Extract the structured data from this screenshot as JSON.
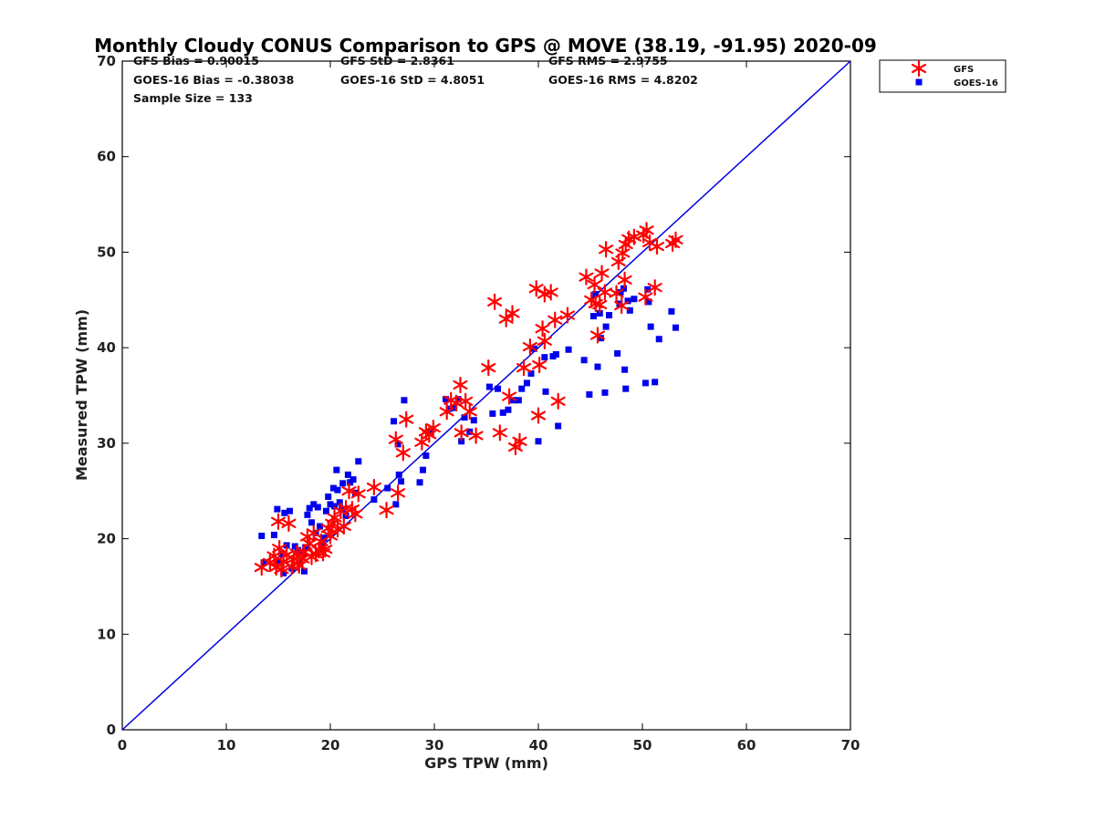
{
  "chart_data": {
    "type": "scatter",
    "title": "Monthly Cloudy CONUS Comparison to GPS @ MOVE (38.19, -91.95) 2020-09",
    "xlabel": "GPS TPW (mm)",
    "ylabel": "Measured TPW (mm)",
    "xlim": [
      0,
      70
    ],
    "ylim": [
      0,
      70
    ],
    "xticks": [
      "0",
      "10",
      "20",
      "30",
      "40",
      "50",
      "60",
      "70"
    ],
    "yticks": [
      "0",
      "10",
      "20",
      "30",
      "40",
      "50",
      "60",
      "70"
    ],
    "grid": false,
    "legend_position": "top-right-outside",
    "reference_line": {
      "name": "1:1",
      "x": [
        0,
        70
      ],
      "y": [
        0,
        70
      ],
      "color": "#0000dd"
    },
    "stats": {
      "gfs_bias": "GFS Bias = 0.90015",
      "gfs_std": "GFS StD = 2.8361",
      "gfs_rms": "GFS RMS = 2.9755",
      "goes_bias": "GOES-16 Bias = -0.38038",
      "goes_std": "GOES-16 StD = 4.8051",
      "goes_rms": "GOES-16 RMS = 4.8202",
      "sample_size": "Sample Size = 133"
    },
    "series": [
      {
        "name": "GFS",
        "marker": "asterisk",
        "color": "#ff0000",
        "points": [
          [
            13.4,
            17.0
          ],
          [
            14.2,
            17.5
          ],
          [
            14.6,
            18.2
          ],
          [
            14.8,
            17.0
          ],
          [
            15.0,
            21.8
          ],
          [
            15.1,
            19.0
          ],
          [
            15.3,
            16.8
          ],
          [
            15.5,
            17.6
          ],
          [
            15.8,
            18.3
          ],
          [
            16.0,
            21.6
          ],
          [
            16.3,
            17.1
          ],
          [
            16.5,
            17.9
          ],
          [
            16.8,
            18.5
          ],
          [
            17.0,
            17.2
          ],
          [
            17.3,
            17.9
          ],
          [
            17.5,
            18.6
          ],
          [
            17.8,
            20.2
          ],
          [
            18.0,
            19.5
          ],
          [
            18.2,
            18.1
          ],
          [
            18.4,
            20.6
          ],
          [
            18.6,
            18.4
          ],
          [
            18.9,
            18.8
          ],
          [
            19.1,
            19.7
          ],
          [
            19.3,
            18.5
          ],
          [
            19.5,
            18.9
          ],
          [
            19.8,
            21.1
          ],
          [
            20.0,
            20.3
          ],
          [
            20.2,
            21.6
          ],
          [
            20.4,
            22.2
          ],
          [
            20.7,
            21.0
          ],
          [
            21.0,
            22.9
          ],
          [
            21.3,
            21.3
          ],
          [
            21.5,
            23.2
          ],
          [
            21.8,
            25.0
          ],
          [
            22.1,
            23.1
          ],
          [
            22.4,
            22.6
          ],
          [
            22.7,
            24.7
          ],
          [
            24.2,
            25.4
          ],
          [
            25.4,
            23.0
          ],
          [
            26.3,
            30.4
          ],
          [
            26.5,
            24.8
          ],
          [
            27.0,
            29.0
          ],
          [
            27.3,
            32.5
          ],
          [
            28.8,
            30.1
          ],
          [
            29.2,
            31.2
          ],
          [
            29.5,
            30.9
          ],
          [
            29.9,
            31.6
          ],
          [
            31.2,
            33.3
          ],
          [
            31.6,
            34.5
          ],
          [
            32.1,
            34.2
          ],
          [
            32.5,
            36.1
          ],
          [
            32.6,
            31.1
          ],
          [
            33.0,
            34.4
          ],
          [
            33.4,
            33.3
          ],
          [
            34.0,
            30.8
          ],
          [
            35.2,
            37.9
          ],
          [
            35.8,
            44.8
          ],
          [
            36.3,
            31.1
          ],
          [
            36.9,
            43.0
          ],
          [
            37.2,
            34.9
          ],
          [
            37.5,
            43.6
          ],
          [
            37.8,
            29.6
          ],
          [
            38.2,
            30.2
          ],
          [
            38.6,
            37.9
          ],
          [
            39.2,
            40.1
          ],
          [
            39.8,
            46.2
          ],
          [
            40.0,
            32.9
          ],
          [
            40.1,
            38.2
          ],
          [
            40.4,
            42.0
          ],
          [
            40.6,
            40.7
          ],
          [
            40.6,
            45.6
          ],
          [
            41.2,
            45.8
          ],
          [
            41.6,
            42.9
          ],
          [
            41.9,
            34.4
          ],
          [
            42.8,
            43.4
          ],
          [
            44.6,
            47.4
          ],
          [
            45.1,
            45.0
          ],
          [
            45.4,
            46.6
          ],
          [
            45.7,
            41.3
          ],
          [
            45.9,
            44.5
          ],
          [
            46.1,
            47.8
          ],
          [
            46.4,
            45.8
          ],
          [
            46.5,
            50.3
          ],
          [
            47.5,
            45.7
          ],
          [
            47.7,
            49.0
          ],
          [
            48.0,
            44.4
          ],
          [
            48.1,
            49.9
          ],
          [
            48.3,
            47.1
          ],
          [
            48.4,
            50.8
          ],
          [
            48.7,
            51.4
          ],
          [
            49.2,
            51.6
          ],
          [
            50.1,
            51.8
          ],
          [
            50.3,
            45.3
          ],
          [
            50.4,
            52.3
          ],
          [
            50.7,
            51.0
          ],
          [
            51.2,
            46.3
          ],
          [
            51.4,
            50.6
          ],
          [
            52.9,
            50.9
          ],
          [
            53.2,
            51.3
          ],
          [
            45.5,
            44.6
          ]
        ]
      },
      {
        "name": "GOES-16",
        "marker": "square",
        "color": "#0000ee",
        "points": [
          [
            13.4,
            20.3
          ],
          [
            13.6,
            17.5
          ],
          [
            14.6,
            20.4
          ],
          [
            14.9,
            23.1
          ],
          [
            15.0,
            17.5
          ],
          [
            15.3,
            18.4
          ],
          [
            15.5,
            16.4
          ],
          [
            15.6,
            22.7
          ],
          [
            15.8,
            19.3
          ],
          [
            16.1,
            22.9
          ],
          [
            16.3,
            16.9
          ],
          [
            16.6,
            19.2
          ],
          [
            16.9,
            18.8
          ],
          [
            17.1,
            17.4
          ],
          [
            17.4,
            18.5
          ],
          [
            17.5,
            16.6
          ],
          [
            17.6,
            19.1
          ],
          [
            17.8,
            22.5
          ],
          [
            18.0,
            23.2
          ],
          [
            18.2,
            21.7
          ],
          [
            18.4,
            23.6
          ],
          [
            18.6,
            20.6
          ],
          [
            18.8,
            23.3
          ],
          [
            19.0,
            21.3
          ],
          [
            19.2,
            19.6
          ],
          [
            19.4,
            20.1
          ],
          [
            19.6,
            22.9
          ],
          [
            19.8,
            24.4
          ],
          [
            20.0,
            23.6
          ],
          [
            20.3,
            25.3
          ],
          [
            20.4,
            23.4
          ],
          [
            20.6,
            27.2
          ],
          [
            20.7,
            25.1
          ],
          [
            20.9,
            23.8
          ],
          [
            21.1,
            23.1
          ],
          [
            21.2,
            25.8
          ],
          [
            21.5,
            22.4
          ],
          [
            21.7,
            26.7
          ],
          [
            21.9,
            25.9
          ],
          [
            22.2,
            26.2
          ],
          [
            22.4,
            24.8
          ],
          [
            22.7,
            28.1
          ],
          [
            24.2,
            24.1
          ],
          [
            25.5,
            25.3
          ],
          [
            26.1,
            32.3
          ],
          [
            26.3,
            23.6
          ],
          [
            26.5,
            29.9
          ],
          [
            26.6,
            26.7
          ],
          [
            26.8,
            26.0
          ],
          [
            27.1,
            34.5
          ],
          [
            28.6,
            25.9
          ],
          [
            28.9,
            27.2
          ],
          [
            29.2,
            28.7
          ],
          [
            29.6,
            31.2
          ],
          [
            31.1,
            34.6
          ],
          [
            31.4,
            33.6
          ],
          [
            31.9,
            33.7
          ],
          [
            32.3,
            34.6
          ],
          [
            32.6,
            30.2
          ],
          [
            32.9,
            32.7
          ],
          [
            33.4,
            31.2
          ],
          [
            33.8,
            32.4
          ],
          [
            35.3,
            35.9
          ],
          [
            35.6,
            33.1
          ],
          [
            36.1,
            35.7
          ],
          [
            36.6,
            33.2
          ],
          [
            37.1,
            33.5
          ],
          [
            37.6,
            34.5
          ],
          [
            38.1,
            34.5
          ],
          [
            38.4,
            35.7
          ],
          [
            38.9,
            36.3
          ],
          [
            39.3,
            37.3
          ],
          [
            39.6,
            39.9
          ],
          [
            40.0,
            30.2
          ],
          [
            40.6,
            39.0
          ],
          [
            40.7,
            35.4
          ],
          [
            41.4,
            39.1
          ],
          [
            41.7,
            39.3
          ],
          [
            41.9,
            31.8
          ],
          [
            42.9,
            39.8
          ],
          [
            44.4,
            38.7
          ],
          [
            44.9,
            35.1
          ],
          [
            45.3,
            43.3
          ],
          [
            45.5,
            45.6
          ],
          [
            45.7,
            38.0
          ],
          [
            45.9,
            43.6
          ],
          [
            46.0,
            41.0
          ],
          [
            46.4,
            35.3
          ],
          [
            46.5,
            42.2
          ],
          [
            46.8,
            43.4
          ],
          [
            47.6,
            39.4
          ],
          [
            47.8,
            44.6
          ],
          [
            47.9,
            45.8
          ],
          [
            48.2,
            46.2
          ],
          [
            48.4,
            35.7
          ],
          [
            48.6,
            44.9
          ],
          [
            48.8,
            43.9
          ],
          [
            49.2,
            45.1
          ],
          [
            50.3,
            36.3
          ],
          [
            50.6,
            44.8
          ],
          [
            50.8,
            42.2
          ],
          [
            51.2,
            36.4
          ],
          [
            51.6,
            40.9
          ],
          [
            52.8,
            43.8
          ],
          [
            53.2,
            42.1
          ],
          [
            50.5,
            46.1
          ],
          [
            48.3,
            37.7
          ]
        ]
      }
    ]
  }
}
